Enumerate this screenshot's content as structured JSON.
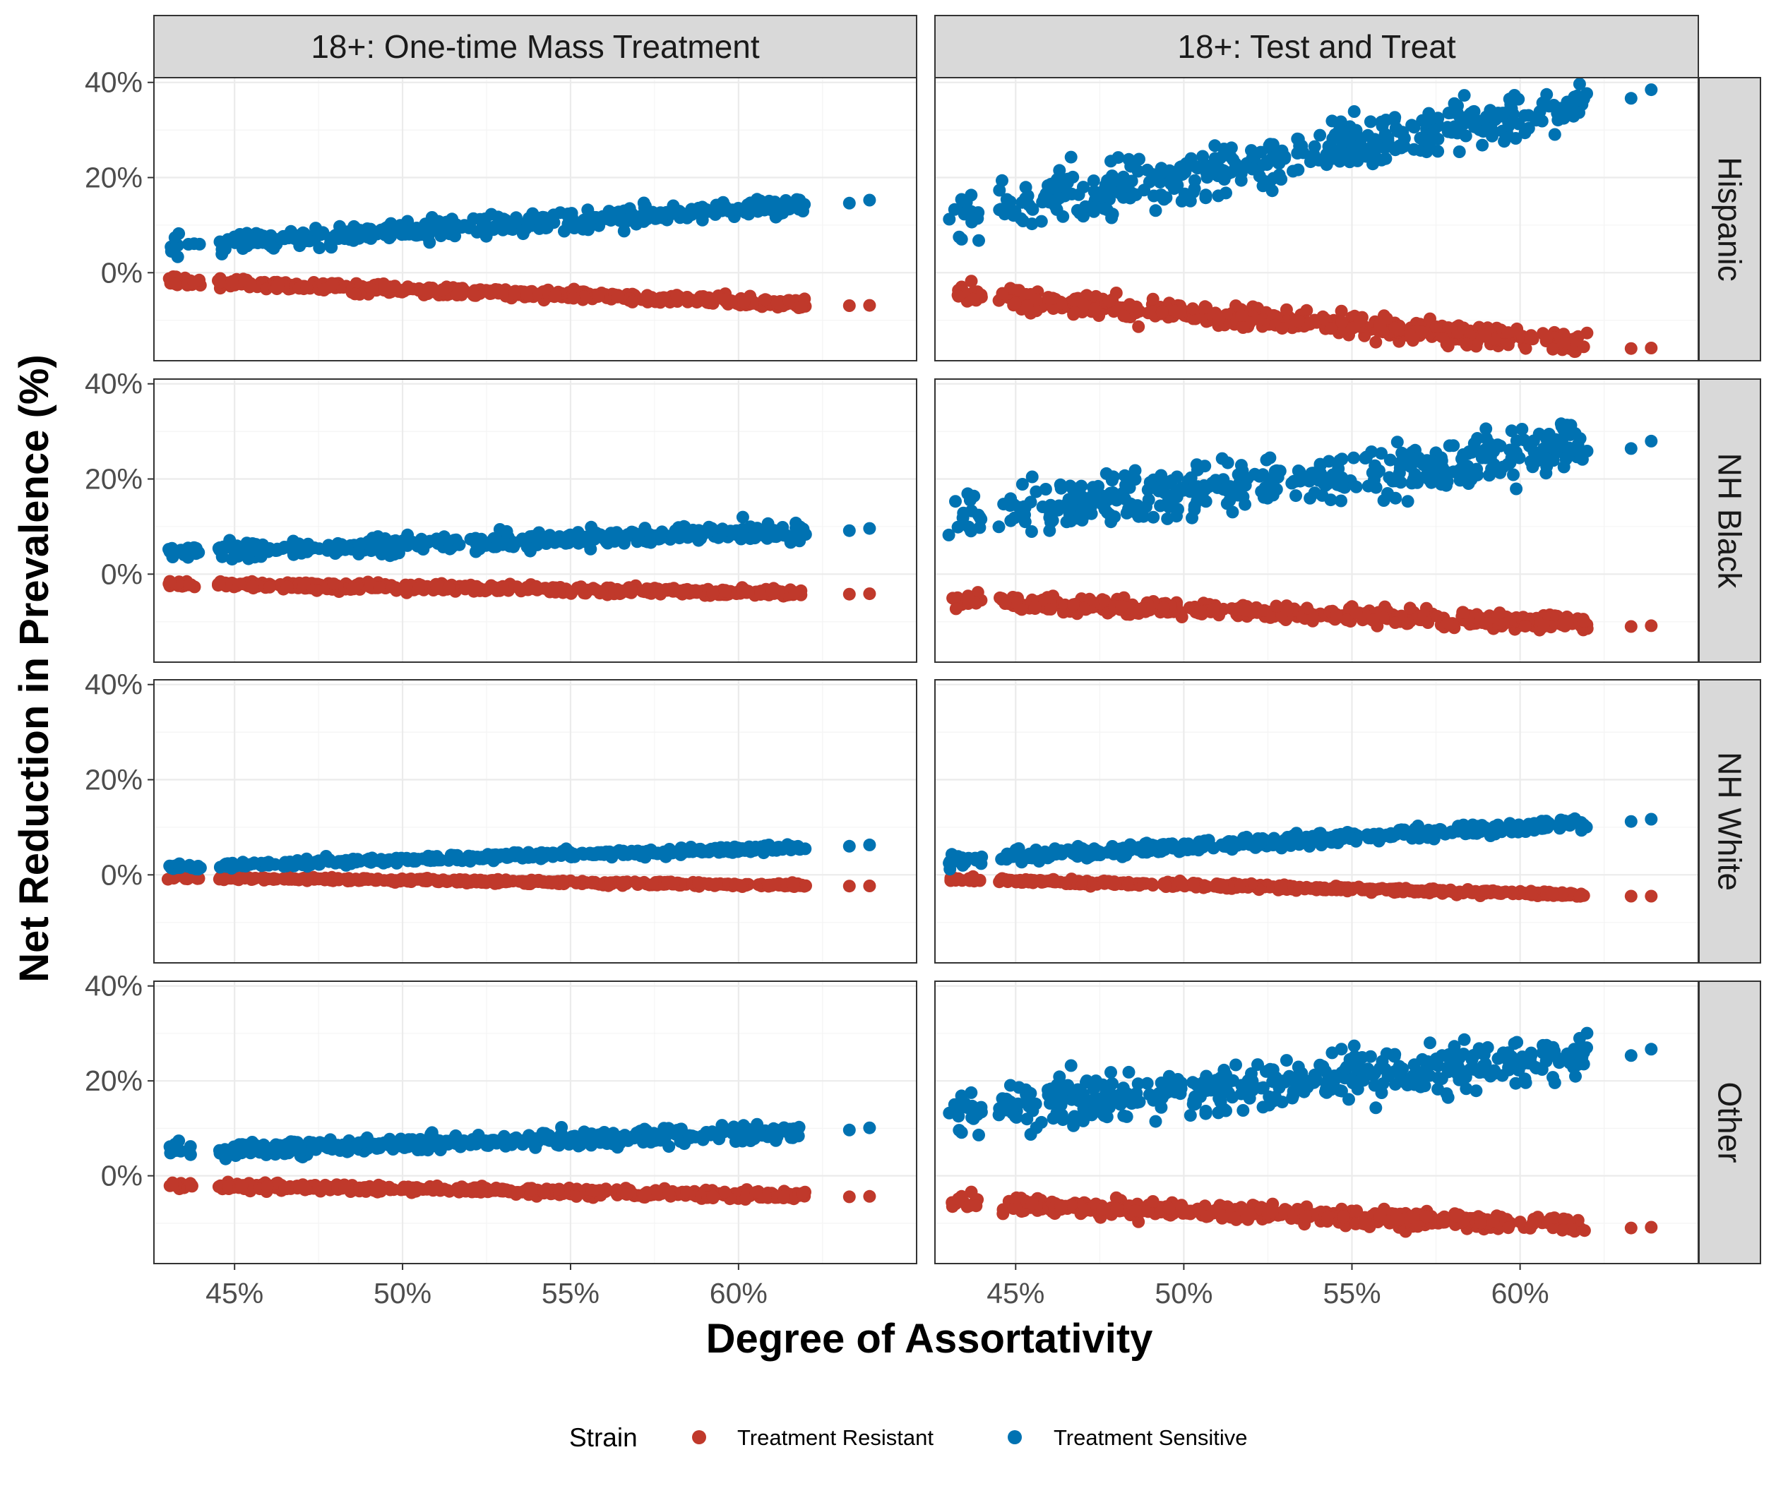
{
  "colors": {
    "resistant": "#c0392b",
    "sensitive": "#0072b2"
  },
  "chart_data": {
    "type": "scatter",
    "facets": {
      "columns": [
        "18+: One-time Mass Treatment",
        "18+: Test and Treat"
      ],
      "rows": [
        "Hispanic",
        "NH Black",
        "NH White",
        "Other"
      ]
    },
    "xlabel": "Degree of Assortativity",
    "ylabel": "Net Reduction in Prevalence (%)",
    "xlim": [
      42.6,
      65.3
    ],
    "ylim": [
      -18.5,
      41
    ],
    "x_ticks": [
      45,
      50,
      55,
      60
    ],
    "x_tick_labels": [
      "45%",
      "50%",
      "55%",
      "60%"
    ],
    "y_ticks": [
      0,
      20,
      40
    ],
    "y_tick_labels": [
      "0%",
      "20%",
      "40%"
    ],
    "grid": true,
    "legend": {
      "title": "Strain",
      "position": "bottom",
      "entries": [
        "Treatment Resistant",
        "Treatment Sensitive"
      ]
    },
    "x_range_points": [
      43,
      62
    ],
    "x_extra_points": [
      63.3,
      63.9
    ],
    "series_trends": [
      {
        "row": "Hispanic",
        "col": "18+: One-time Mass Treatment",
        "series": "Treatment Sensitive",
        "y_start": 5.5,
        "y_end": 14.2,
        "spread": 0.9
      },
      {
        "row": "Hispanic",
        "col": "18+: One-time Mass Treatment",
        "series": "Treatment Resistant",
        "y_start": -1.8,
        "y_end": -6.5,
        "spread": 0.5
      },
      {
        "row": "Hispanic",
        "col": "18+: Test and Treat",
        "series": "Treatment Sensitive",
        "y_start": 11,
        "y_end": 35.5,
        "spread": 2.6
      },
      {
        "row": "Hispanic",
        "col": "18+: Test and Treat",
        "series": "Treatment Resistant",
        "y_start": -4.5,
        "y_end": -15,
        "spread": 1.1
      },
      {
        "row": "NH Black",
        "col": "18+: One-time Mass Treatment",
        "series": "Treatment Sensitive",
        "y_start": 4.5,
        "y_end": 9,
        "spread": 0.8
      },
      {
        "row": "NH Black",
        "col": "18+: One-time Mass Treatment",
        "series": "Treatment Resistant",
        "y_start": -2,
        "y_end": -4,
        "spread": 0.4
      },
      {
        "row": "NH Black",
        "col": "18+: Test and Treat",
        "series": "Treatment Sensitive",
        "y_start": 12,
        "y_end": 26,
        "spread": 2.8
      },
      {
        "row": "NH Black",
        "col": "18+: Test and Treat",
        "series": "Treatment Resistant",
        "y_start": -5.5,
        "y_end": -10.5,
        "spread": 0.8
      },
      {
        "row": "NH White",
        "col": "18+: One-time Mass Treatment",
        "series": "Treatment Sensitive",
        "y_start": 1.6,
        "y_end": 5.8,
        "spread": 0.35
      },
      {
        "row": "NH White",
        "col": "18+: One-time Mass Treatment",
        "series": "Treatment Resistant",
        "y_start": -0.5,
        "y_end": -2.2,
        "spread": 0.2
      },
      {
        "row": "NH White",
        "col": "18+: Test and Treat",
        "series": "Treatment Sensitive",
        "y_start": 3,
        "y_end": 10.8,
        "spread": 0.6
      },
      {
        "row": "NH White",
        "col": "18+: Test and Treat",
        "series": "Treatment Resistant",
        "y_start": -0.9,
        "y_end": -4.2,
        "spread": 0.25
      },
      {
        "row": "Other",
        "col": "18+: One-time Mass Treatment",
        "series": "Treatment Sensitive",
        "y_start": 5,
        "y_end": 9.5,
        "spread": 0.8
      },
      {
        "row": "Other",
        "col": "18+: One-time Mass Treatment",
        "series": "Treatment Resistant",
        "y_start": -2,
        "y_end": -4.2,
        "spread": 0.4
      },
      {
        "row": "Other",
        "col": "18+: Test and Treat",
        "series": "Treatment Sensitive",
        "y_start": 13,
        "y_end": 25,
        "spread": 2.4
      },
      {
        "row": "Other",
        "col": "18+: Test and Treat",
        "series": "Treatment Resistant",
        "y_start": -5.5,
        "y_end": -10.5,
        "spread": 0.8
      }
    ]
  }
}
